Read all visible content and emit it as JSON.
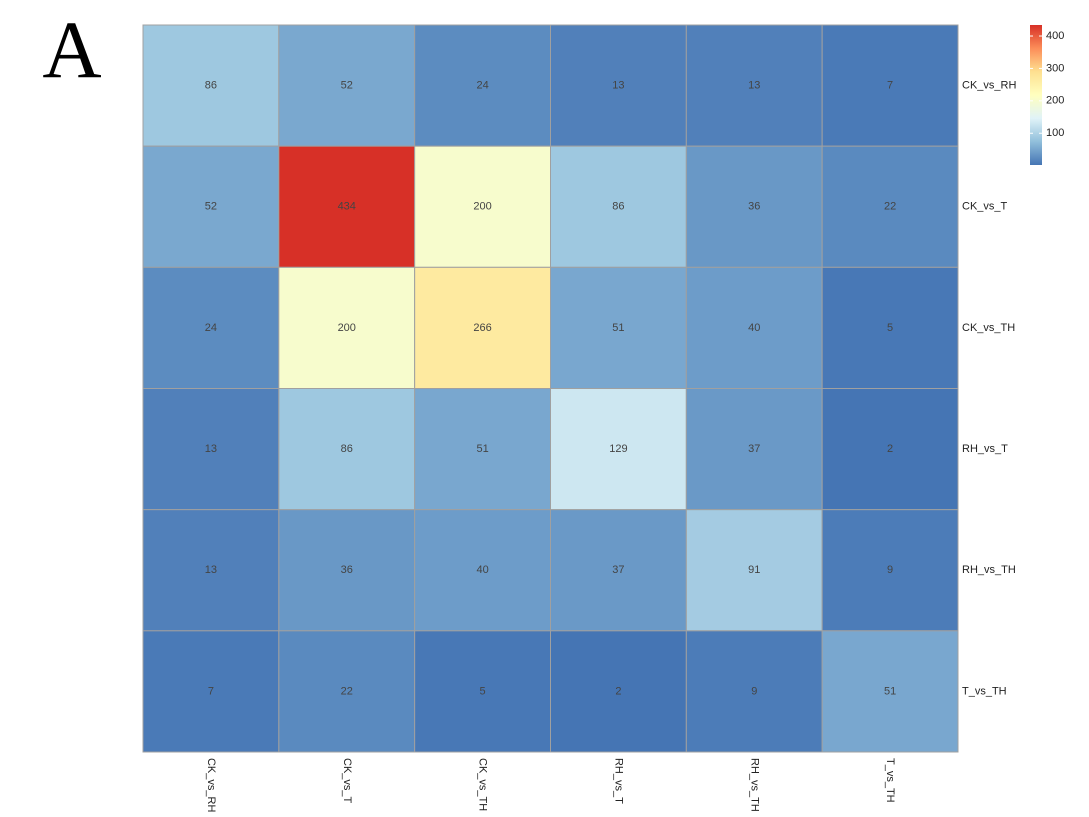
{
  "panel_label": "A",
  "chart_data": {
    "type": "heatmap",
    "rows": [
      "CK_vs_RH",
      "CK_vs_T",
      "CK_vs_TH",
      "RH_vs_T",
      "RH_vs_TH",
      "T_vs_TH"
    ],
    "columns": [
      "CK_vs_RH",
      "CK_vs_T",
      "CK_vs_TH",
      "RH_vs_T",
      "RH_vs_TH",
      "T_vs_TH"
    ],
    "values": [
      [
        86,
        52,
        24,
        13,
        13,
        7
      ],
      [
        52,
        434,
        200,
        86,
        36,
        22
      ],
      [
        24,
        200,
        266,
        51,
        40,
        5
      ],
      [
        13,
        86,
        51,
        129,
        37,
        2
      ],
      [
        13,
        36,
        40,
        37,
        91,
        9
      ],
      [
        7,
        22,
        5,
        2,
        9,
        51
      ]
    ],
    "zlim": [
      2,
      434
    ],
    "zticks": [
      100,
      200,
      300,
      400
    ],
    "colors": [
      "#4575b4",
      "#91bfdb",
      "#e0f3f8",
      "#ffffbf",
      "#fee090",
      "#fc8d59",
      "#d73027"
    ],
    "border_color": "#a0a0a0"
  }
}
